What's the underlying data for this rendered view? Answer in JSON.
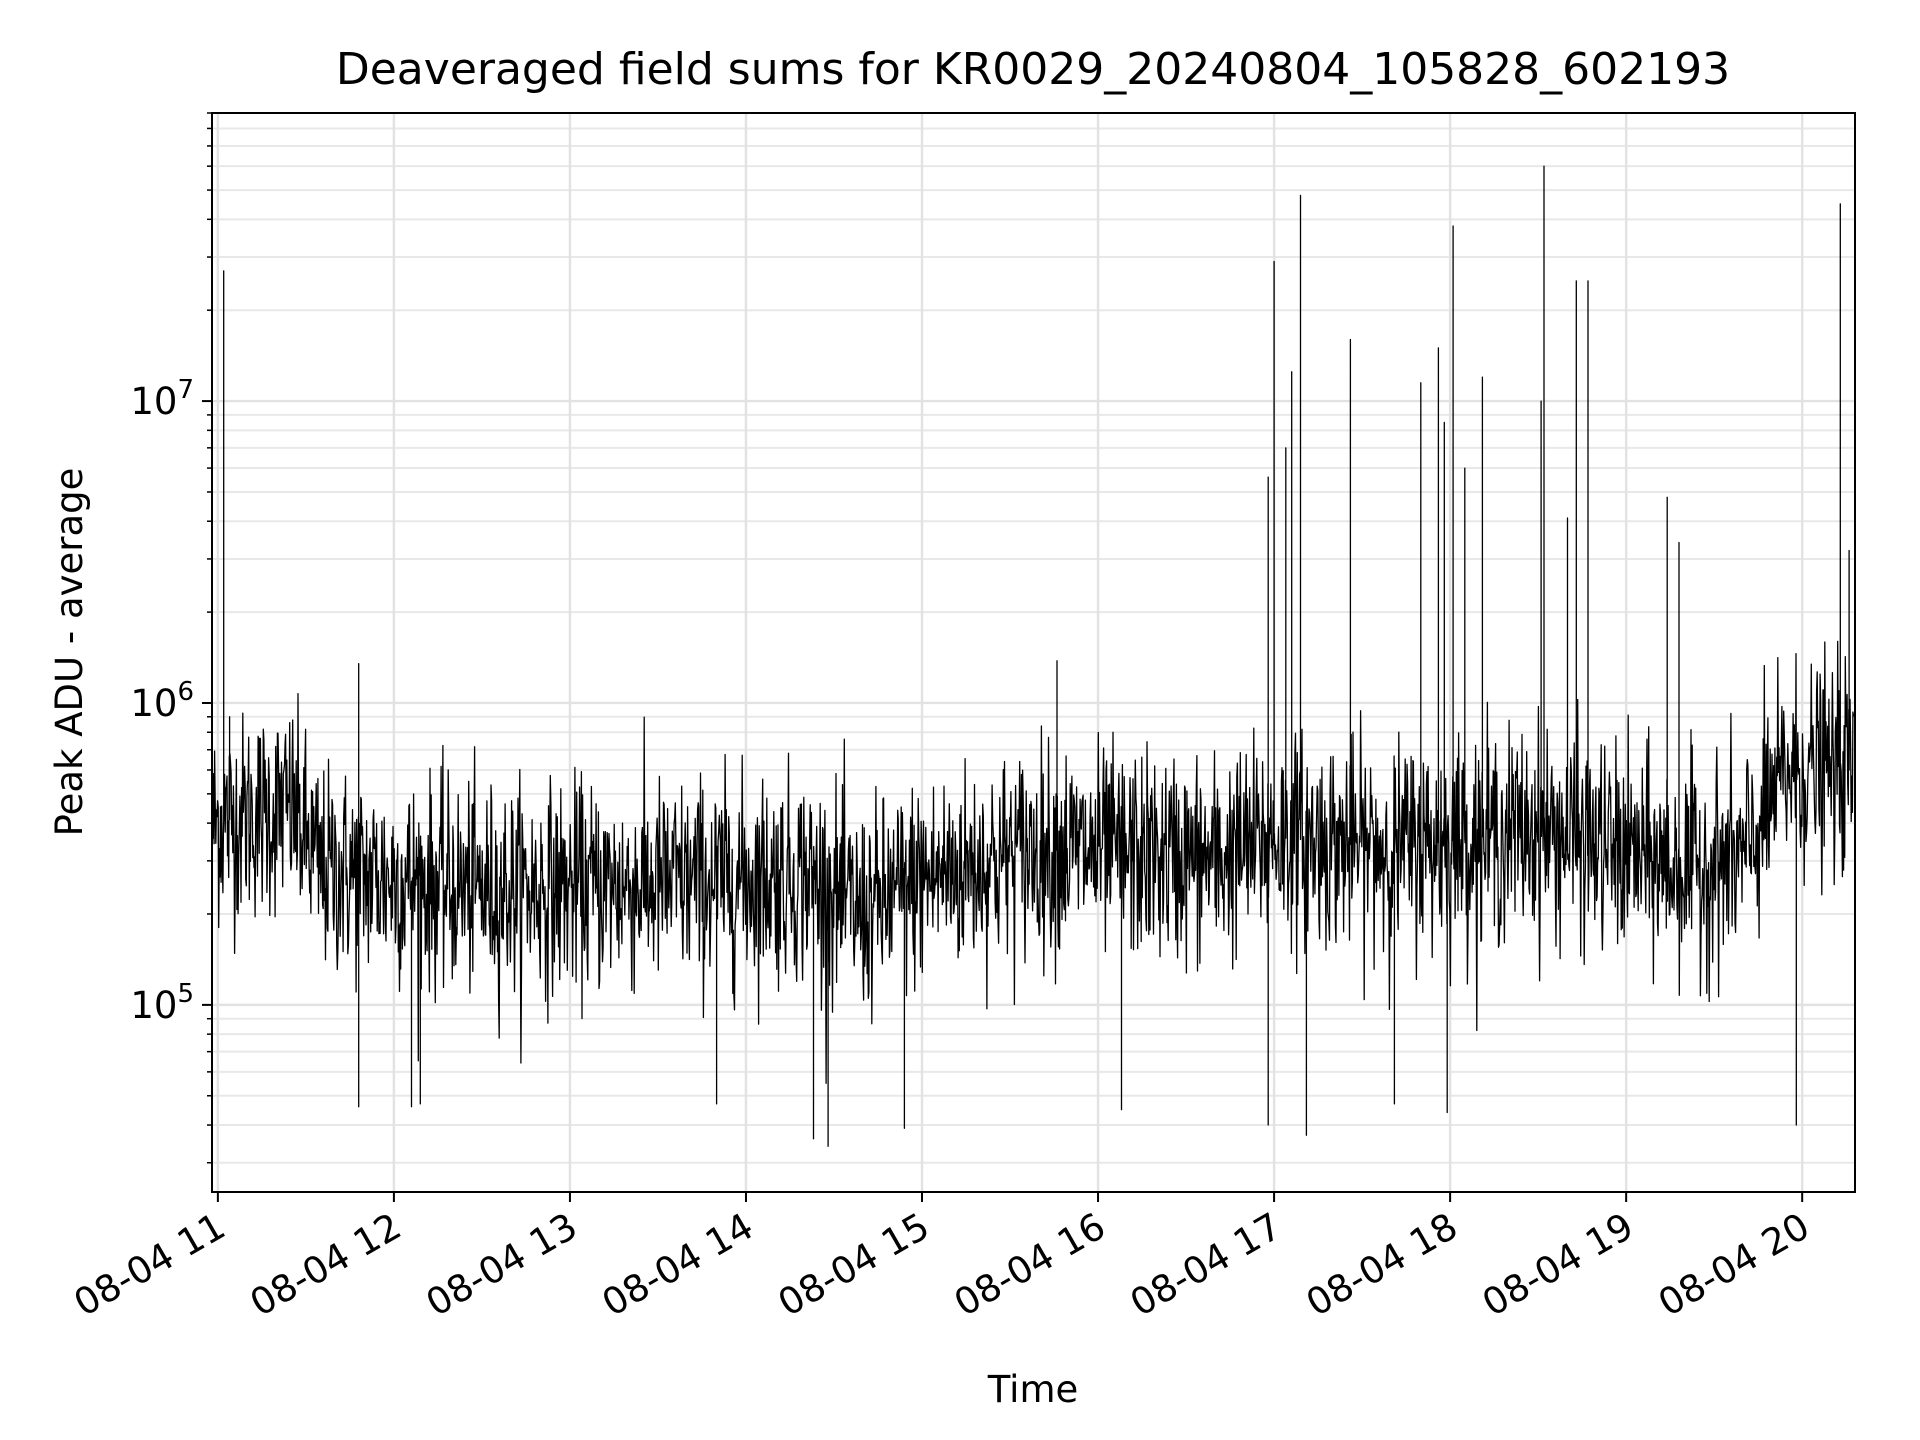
{
  "chart_data": {
    "type": "line",
    "title": "Deaveraged field sums for KR0029_20240804_105828_602193",
    "xlabel": "Time",
    "ylabel": "Peak ADU - average",
    "yscale": "log",
    "grid": true,
    "xlim": [
      "2024-08-04 10:58",
      "2024-08-04 20:18"
    ],
    "ylim": [
      24000,
      90000000
    ],
    "x_ticks": [
      {
        "t": "2024-08-04 11:00",
        "label": "08-04 11"
      },
      {
        "t": "2024-08-04 12:00",
        "label": "08-04 12"
      },
      {
        "t": "2024-08-04 13:00",
        "label": "08-04 13"
      },
      {
        "t": "2024-08-04 14:00",
        "label": "08-04 14"
      },
      {
        "t": "2024-08-04 15:00",
        "label": "08-04 15"
      },
      {
        "t": "2024-08-04 16:00",
        "label": "08-04 16"
      },
      {
        "t": "2024-08-04 17:00",
        "label": "08-04 17"
      },
      {
        "t": "2024-08-04 18:00",
        "label": "08-04 18"
      },
      {
        "t": "2024-08-04 19:00",
        "label": "08-04 19"
      },
      {
        "t": "2024-08-04 20:00",
        "label": "08-04 20"
      }
    ],
    "y_ticks": [
      {
        "value": 100000,
        "base": "10",
        "exp": "5"
      },
      {
        "value": 1000000,
        "base": "10",
        "exp": "6"
      },
      {
        "value": 10000000,
        "base": "10",
        "exp": "7"
      }
    ],
    "series": [
      {
        "color": "#000000",
        "baseline": [
          {
            "t": "2024-08-04 10:58",
            "y": 400000
          },
          {
            "t": "2024-08-04 11:25",
            "y": 450000
          },
          {
            "t": "2024-08-04 11:35",
            "y": 280000
          },
          {
            "t": "2024-08-04 12:30",
            "y": 240000
          },
          {
            "t": "2024-08-04 13:30",
            "y": 250000
          },
          {
            "t": "2024-08-04 14:20",
            "y": 270000
          },
          {
            "t": "2024-08-04 14:40",
            "y": 200000
          },
          {
            "t": "2024-08-04 15:00",
            "y": 260000
          },
          {
            "t": "2024-08-04 15:40",
            "y": 330000
          },
          {
            "t": "2024-08-04 16:40",
            "y": 300000
          },
          {
            "t": "2024-08-04 17:00",
            "y": 360000
          },
          {
            "t": "2024-08-04 17:40",
            "y": 330000
          },
          {
            "t": "2024-08-04 18:30",
            "y": 380000
          },
          {
            "t": "2024-08-04 19:20",
            "y": 280000
          },
          {
            "t": "2024-08-04 19:40",
            "y": 300000
          },
          {
            "t": "2024-08-04 19:55",
            "y": 600000
          },
          {
            "t": "2024-08-04 20:18",
            "y": 600000
          }
        ],
        "spikes": [
          {
            "t": "2024-08-04 11:02",
            "y": 27000000
          },
          {
            "t": "2024-08-04 11:04",
            "y": 900000
          },
          {
            "t": "2024-08-04 11:48",
            "y": 1350000
          },
          {
            "t": "2024-08-04 15:46",
            "y": 1380000
          },
          {
            "t": "2024-08-04 16:58",
            "y": 5600000
          },
          {
            "t": "2024-08-04 17:00",
            "y": 29000000
          },
          {
            "t": "2024-08-04 17:06",
            "y": 12500000
          },
          {
            "t": "2024-08-04 17:04",
            "y": 7000000
          },
          {
            "t": "2024-08-04 17:09",
            "y": 48000000
          },
          {
            "t": "2024-08-04 17:26",
            "y": 16000000
          },
          {
            "t": "2024-08-04 17:50",
            "y": 11500000
          },
          {
            "t": "2024-08-04 17:56",
            "y": 15000000
          },
          {
            "t": "2024-08-04 17:58",
            "y": 8500000
          },
          {
            "t": "2024-08-04 18:01",
            "y": 38000000
          },
          {
            "t": "2024-08-04 18:05",
            "y": 6000000
          },
          {
            "t": "2024-08-04 18:11",
            "y": 12000000
          },
          {
            "t": "2024-08-04 18:31",
            "y": 10000000
          },
          {
            "t": "2024-08-04 18:32",
            "y": 60000000
          },
          {
            "t": "2024-08-04 18:43",
            "y": 25000000
          },
          {
            "t": "2024-08-04 18:47",
            "y": 25000000
          },
          {
            "t": "2024-08-04 18:40",
            "y": 4100000
          },
          {
            "t": "2024-08-04 19:14",
            "y": 4800000
          },
          {
            "t": "2024-08-04 19:18",
            "y": 3400000
          },
          {
            "t": "2024-08-04 20:13",
            "y": 45000000
          },
          {
            "t": "2024-08-04 20:16",
            "y": 3200000
          }
        ],
        "dips": [
          {
            "t": "2024-08-04 11:48",
            "y": 46000
          },
          {
            "t": "2024-08-04 12:06",
            "y": 46000
          },
          {
            "t": "2024-08-04 12:09",
            "y": 47000
          },
          {
            "t": "2024-08-04 13:50",
            "y": 47000
          },
          {
            "t": "2024-08-04 14:23",
            "y": 36000
          },
          {
            "t": "2024-08-04 14:28",
            "y": 34000
          },
          {
            "t": "2024-08-04 14:54",
            "y": 39000
          },
          {
            "t": "2024-08-04 16:08",
            "y": 45000
          },
          {
            "t": "2024-08-04 16:58",
            "y": 40000
          },
          {
            "t": "2024-08-04 17:11",
            "y": 37000
          },
          {
            "t": "2024-08-04 17:41",
            "y": 47000
          },
          {
            "t": "2024-08-04 17:59",
            "y": 44000
          },
          {
            "t": "2024-08-04 19:58",
            "y": 40000
          }
        ]
      }
    ]
  }
}
